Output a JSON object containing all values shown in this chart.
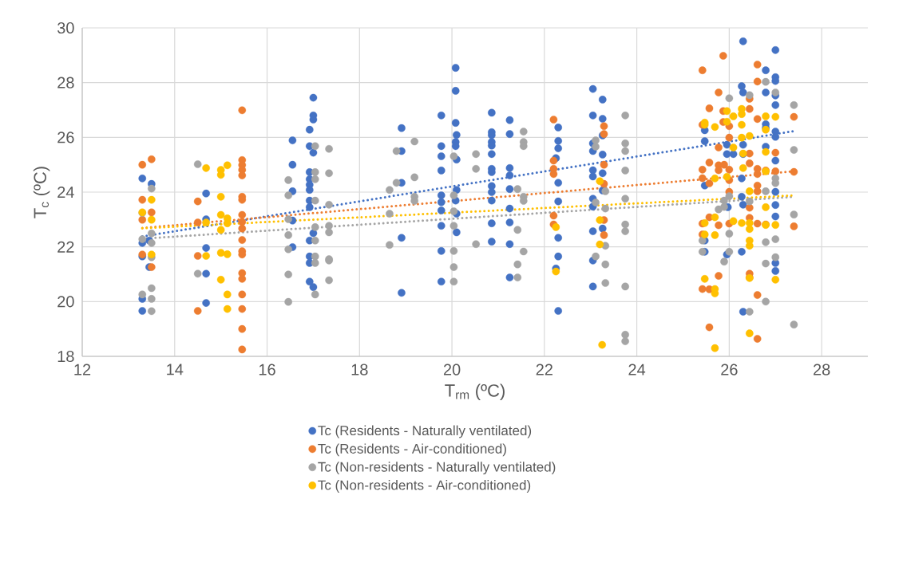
{
  "chart_data": {
    "type": "scatter",
    "xlabel": "T$_{rm}$ (ºC)",
    "ylabel": "T$_{c}$ (ºC)",
    "xlim": [
      12,
      29
    ],
    "xticks": [
      12,
      14,
      16,
      18,
      20,
      22,
      24,
      26,
      28
    ],
    "ylim": [
      18,
      30
    ],
    "yticks": [
      18,
      20,
      22,
      24,
      26,
      28,
      30
    ],
    "grid": true,
    "legend": "bottom",
    "marker": "circle",
    "series": [
      {
        "name": "Tc (Residents - Naturally ventilated)",
        "color": "#4472c4",
        "x": [
          13.3,
          13.5,
          13.3,
          13.45,
          13.3,
          13.45,
          13.3,
          13.3,
          14.68,
          14.68,
          14.68,
          14.68,
          14.68,
          16.55,
          16.55,
          16.55,
          16.55,
          16.55,
          17.0,
          17.0,
          17.0,
          16.92,
          16.92,
          17.0,
          16.92,
          16.92,
          16.92,
          16.92,
          16.92,
          16.92,
          17.0,
          16.92,
          16.92,
          16.92,
          16.92,
          17.0,
          18.91,
          18.91,
          18.91,
          18.91,
          18.91,
          19.77,
          19.77,
          19.77,
          19.77,
          19.77,
          19.77,
          19.77,
          19.77,
          19.77,
          19.77,
          20.08,
          20.08,
          20.08,
          20.1,
          20.08,
          20.08,
          20.1,
          20.1,
          20.08,
          20.1,
          20.1,
          20.86,
          20.86,
          20.86,
          20.86,
          20.86,
          20.86,
          20.86,
          20.86,
          20.86,
          20.86,
          20.86,
          20.86,
          20.86,
          21.25,
          21.25,
          21.25,
          21.25,
          21.25,
          21.25,
          21.25,
          21.25,
          21.25,
          22.3,
          22.3,
          22.3,
          22.25,
          22.3,
          22.3,
          22.3,
          22.3,
          22.25,
          22.3,
          23.05,
          23.05,
          23.05,
          23.05,
          23.05,
          23.05,
          23.05,
          23.05,
          23.05,
          23.05,
          23.05,
          23.26,
          23.26,
          23.26,
          23.26,
          23.26,
          23.26,
          23.26,
          26.3,
          27.0,
          26.79,
          27.0,
          27.0,
          26.27,
          26.3,
          26.79,
          27.0,
          27.0,
          26.79,
          26.79,
          25.47,
          27.0,
          27.0,
          25.47,
          25.95,
          25.95,
          26.09,
          26.3,
          26.3,
          26.79,
          27.0,
          26.27,
          25.47,
          27.0,
          26.27,
          26.3,
          25.97,
          27.0,
          27.0,
          25.47,
          25.47,
          25.95,
          26.27,
          27.0,
          27.0,
          26.3
        ],
        "values": [
          24.5,
          24.3,
          22.14,
          22.23,
          21.65,
          21.26,
          20.1,
          19.66,
          23.95,
          23.01,
          21.96,
          21.02,
          19.95,
          25.89,
          25.0,
          24.03,
          22.96,
          21.99,
          27.45,
          26.8,
          26.65,
          26.28,
          25.68,
          25.44,
          24.73,
          24.47,
          24.27,
          24.08,
          23.69,
          23.45,
          22.5,
          22.23,
          21.65,
          21.41,
          20.73,
          20.53,
          26.34,
          25.5,
          24.34,
          22.33,
          20.32,
          26.8,
          25.68,
          25.31,
          24.79,
          23.88,
          23.63,
          23.33,
          22.77,
          21.85,
          20.73,
          28.54,
          27.7,
          26.53,
          26.09,
          25.83,
          25.68,
          25.19,
          24.08,
          23.69,
          23.21,
          22.53,
          26.9,
          26.19,
          26.08,
          25.83,
          25.7,
          25.39,
          24.85,
          24.73,
          24.22,
          24.0,
          23.69,
          22.86,
          22.19,
          26.63,
          26.12,
          24.88,
          24.61,
          24.11,
          23.4,
          22.89,
          22.1,
          20.88,
          26.36,
          25.87,
          25.6,
          25.24,
          24.34,
          23.66,
          22.33,
          21.65,
          21.21,
          19.66,
          27.77,
          26.8,
          25.78,
          25.5,
          24.8,
          24.57,
          23.76,
          23.47,
          22.57,
          21.5,
          20.55,
          27.38,
          26.68,
          26.07,
          25.37,
          24.69,
          24.06,
          22.67,
          29.51,
          29.19,
          28.45,
          28.2,
          28.06,
          27.87,
          27.64,
          27.64,
          27.53,
          27.18,
          26.48,
          26.35,
          26.26,
          26.21,
          26.02,
          25.86,
          25.73,
          25.39,
          25.39,
          25.73,
          25.39,
          25.66,
          25.15,
          24.5,
          24.24,
          24.01,
          23.83,
          23.54,
          23.45,
          23.53,
          23.11,
          22.23,
          21.82,
          21.72,
          21.82,
          21.41,
          21.12,
          19.63
        ]
      },
      {
        "name": "Tc (Residents - Air-conditioned)",
        "color": "#ed7d31",
        "x": [
          13.3,
          13.5,
          13.3,
          13.5,
          13.3,
          13.3,
          13.5,
          14.5,
          14.5,
          14.5,
          14.5,
          15.46,
          15.46,
          15.46,
          15.46,
          15.46,
          15.46,
          15.46,
          15.46,
          15.46,
          15.46,
          15.46,
          15.46,
          15.46,
          15.46,
          15.46,
          15.46,
          15.46,
          15.46,
          15.46,
          22.2,
          22.2,
          22.2,
          22.2,
          22.2,
          22.2,
          23.29,
          23.29,
          23.29,
          23.29,
          23.29,
          23.29,
          25.87,
          25.42,
          26.61,
          26.61,
          26.44,
          25.77,
          25.57,
          26.44,
          25.87,
          25.42,
          25.87,
          26.0,
          26.61,
          27.4,
          25.77,
          26.0,
          26.44,
          27.0,
          25.57,
          25.42,
          25.77,
          25.77,
          25.89,
          26.0,
          26.44,
          26.61,
          26.79,
          27.0,
          27.4,
          25.42,
          25.57,
          26.0,
          26.61,
          26.61,
          26.61,
          26.0,
          26.44,
          26.44,
          25.42,
          25.57,
          25.77,
          25.42,
          26.0,
          26.61,
          26.79,
          27.4,
          25.77,
          26.44,
          26.44,
          25.42,
          25.57,
          26.61,
          25.57,
          26.61
        ],
        "values": [
          25.0,
          25.2,
          23.72,
          23.26,
          22.99,
          21.72,
          21.26,
          23.66,
          22.89,
          21.67,
          19.66,
          26.99,
          25.17,
          24.99,
          24.81,
          24.61,
          23.83,
          23.72,
          23.17,
          22.91,
          22.67,
          22.25,
          21.84,
          21.72,
          21.04,
          20.83,
          20.26,
          19.73,
          19.0,
          18.25,
          26.65,
          25.15,
          24.85,
          24.66,
          23.14,
          22.82,
          26.41,
          26.12,
          25.0,
          24.3,
          22.98,
          22.43,
          28.98,
          28.45,
          28.66,
          28.04,
          27.41,
          27.64,
          27.06,
          27.04,
          26.96,
          26.46,
          26.56,
          26.41,
          26.67,
          26.75,
          25.63,
          25.99,
          25.41,
          25.44,
          25.08,
          24.82,
          24.98,
          24.8,
          25.0,
          24.82,
          25.05,
          24.85,
          24.79,
          24.76,
          24.74,
          24.51,
          24.32,
          24.44,
          24.66,
          24.24,
          24.03,
          24.01,
          23.43,
          23.06,
          22.85,
          23.08,
          22.79,
          22.45,
          22.85,
          22.85,
          22.82,
          22.75,
          20.94,
          21.02,
          20.88,
          20.46,
          20.45,
          20.24,
          19.06,
          18.64
        ]
      },
      {
        "name": "Tc (Non-residents - Naturally ventilated)",
        "color": "#a5a5a5",
        "x": [
          13.5,
          13.3,
          13.5,
          13.3,
          13.5,
          13.5,
          13.5,
          13.3,
          13.5,
          13.5,
          14.5,
          14.5,
          16.46,
          16.46,
          16.46,
          16.46,
          16.46,
          16.46,
          16.46,
          17.04,
          17.04,
          17.04,
          17.04,
          17.04,
          17.04,
          17.04,
          17.04,
          17.04,
          17.34,
          17.34,
          17.34,
          17.34,
          17.34,
          17.34,
          17.34,
          17.34,
          18.65,
          18.65,
          18.65,
          18.8,
          18.8,
          19.19,
          19.19,
          19.19,
          19.19,
          20.04,
          20.04,
          20.04,
          20.04,
          20.04,
          20.04,
          20.04,
          20.52,
          20.52,
          20.52,
          21.42,
          21.42,
          21.42,
          21.42,
          21.55,
          21.55,
          21.55,
          21.55,
          21.55,
          21.55,
          23.11,
          23.11,
          23.11,
          23.11,
          23.32,
          23.32,
          23.32,
          23.32,
          23.32,
          23.75,
          23.75,
          23.75,
          23.75,
          23.75,
          23.75,
          23.75,
          23.75,
          23.75,
          23.75,
          26.79,
          26.44,
          27.0,
          26.0,
          27.4,
          27.4,
          27.0,
          27.0,
          26.79,
          26.0,
          25.89,
          26.44,
          25.77,
          25.89,
          27.4,
          26.0,
          26.79,
          27.0,
          25.42,
          25.42,
          26.0,
          25.89,
          26.79,
          27.0,
          26.79,
          26.44,
          27.4
        ],
        "values": [
          24.13,
          23.24,
          22.49,
          22.28,
          22.14,
          21.62,
          20.49,
          20.26,
          20.1,
          19.65,
          25.02,
          21.02,
          24.44,
          23.88,
          23.01,
          22.43,
          21.91,
          20.99,
          19.99,
          25.68,
          24.73,
          24.47,
          23.69,
          22.72,
          22.23,
          21.65,
          21.41,
          20.26,
          25.58,
          24.69,
          23.54,
          22.77,
          22.53,
          21.55,
          21.5,
          20.78,
          24.08,
          23.21,
          22.07,
          25.5,
          24.34,
          25.85,
          24.54,
          23.83,
          23.68,
          25.31,
          23.88,
          23.3,
          22.77,
          21.85,
          21.26,
          20.73,
          25.39,
          24.85,
          22.1,
          24.11,
          22.62,
          21.36,
          20.88,
          26.21,
          25.83,
          25.68,
          23.83,
          23.68,
          21.83,
          25.89,
          25.66,
          23.62,
          21.65,
          24.03,
          23.4,
          22.04,
          21.36,
          20.68,
          26.8,
          25.78,
          25.5,
          24.79,
          23.76,
          22.82,
          22.57,
          20.55,
          18.79,
          18.55,
          28.03,
          27.54,
          27.64,
          27.43,
          27.18,
          25.54,
          24.5,
          24.33,
          24.03,
          23.85,
          23.69,
          23.66,
          23.37,
          23.46,
          23.18,
          22.48,
          22.17,
          22.28,
          22.23,
          21.82,
          21.82,
          21.46,
          21.39,
          21.62,
          20.0,
          19.63,
          19.16
        ]
      },
      {
        "name": "Tc (Non-residents - Air-conditioned)",
        "color": "#ffc000",
        "x": [
          13.5,
          13.3,
          13.5,
          13.5,
          14.68,
          14.68,
          14.68,
          15.0,
          15.14,
          15.0,
          15.0,
          15.0,
          15.14,
          15.14,
          15.0,
          15.0,
          15.14,
          15.0,
          15.14,
          15.14,
          22.25,
          22.25,
          23.2,
          23.2,
          23.2,
          23.25,
          25.95,
          26.09,
          26.27,
          26.27,
          25.47,
          25.47,
          25.69,
          25.95,
          26.27,
          26.79,
          27.0,
          26.79,
          26.27,
          26.44,
          26.09,
          26.3,
          26.79,
          26.3,
          26.79,
          25.69,
          25.95,
          26.44,
          26.79,
          25.69,
          25.47,
          26.09,
          26.27,
          26.44,
          26.44,
          26.79,
          27.0,
          25.47,
          25.69,
          26.44,
          26.44,
          25.47,
          26.44,
          27.0,
          25.69,
          25.69,
          26.44,
          25.69
        ],
        "values": [
          23.72,
          23.26,
          22.99,
          21.72,
          24.88,
          22.89,
          21.67,
          24.81,
          24.98,
          24.63,
          23.83,
          23.17,
          23.04,
          22.86,
          22.62,
          21.78,
          21.73,
          20.8,
          20.26,
          19.73,
          22.72,
          21.1,
          24.4,
          22.98,
          22.09,
          18.42,
          26.96,
          26.77,
          27.04,
          26.85,
          26.54,
          26.46,
          26.38,
          26.57,
          26.46,
          26.77,
          26.75,
          26.28,
          25.99,
          26.05,
          25.63,
          25.41,
          25.47,
          24.88,
          24.76,
          24.5,
          24.56,
          24.03,
          23.45,
          23.08,
          22.87,
          22.94,
          22.87,
          22.87,
          22.65,
          22.8,
          22.8,
          22.45,
          22.43,
          22.23,
          22.04,
          20.83,
          20.86,
          20.8,
          20.46,
          20.3,
          18.84,
          18.3
        ]
      },
      {
        "type": "line",
        "color": "#4472c4",
        "marker": "none",
        "line_style": "dotted",
        "x": [
          13.3,
          27.4
        ],
        "values": [
          22.38,
          26.23
        ]
      },
      {
        "type": "line",
        "color": "#ed7d31",
        "marker": "none",
        "line_style": "dotted",
        "x": [
          13.3,
          27.4
        ],
        "values": [
          22.69,
          24.76
        ]
      },
      {
        "type": "line",
        "color": "#a5a5a5",
        "marker": "none",
        "line_style": "dotted",
        "x": [
          13.3,
          27.4
        ],
        "values": [
          22.3,
          23.83
        ]
      },
      {
        "type": "line",
        "color": "#ffc000",
        "marker": "none",
        "line_style": "dotted",
        "x": [
          13.3,
          27.4
        ],
        "values": [
          22.68,
          23.88
        ]
      }
    ]
  }
}
